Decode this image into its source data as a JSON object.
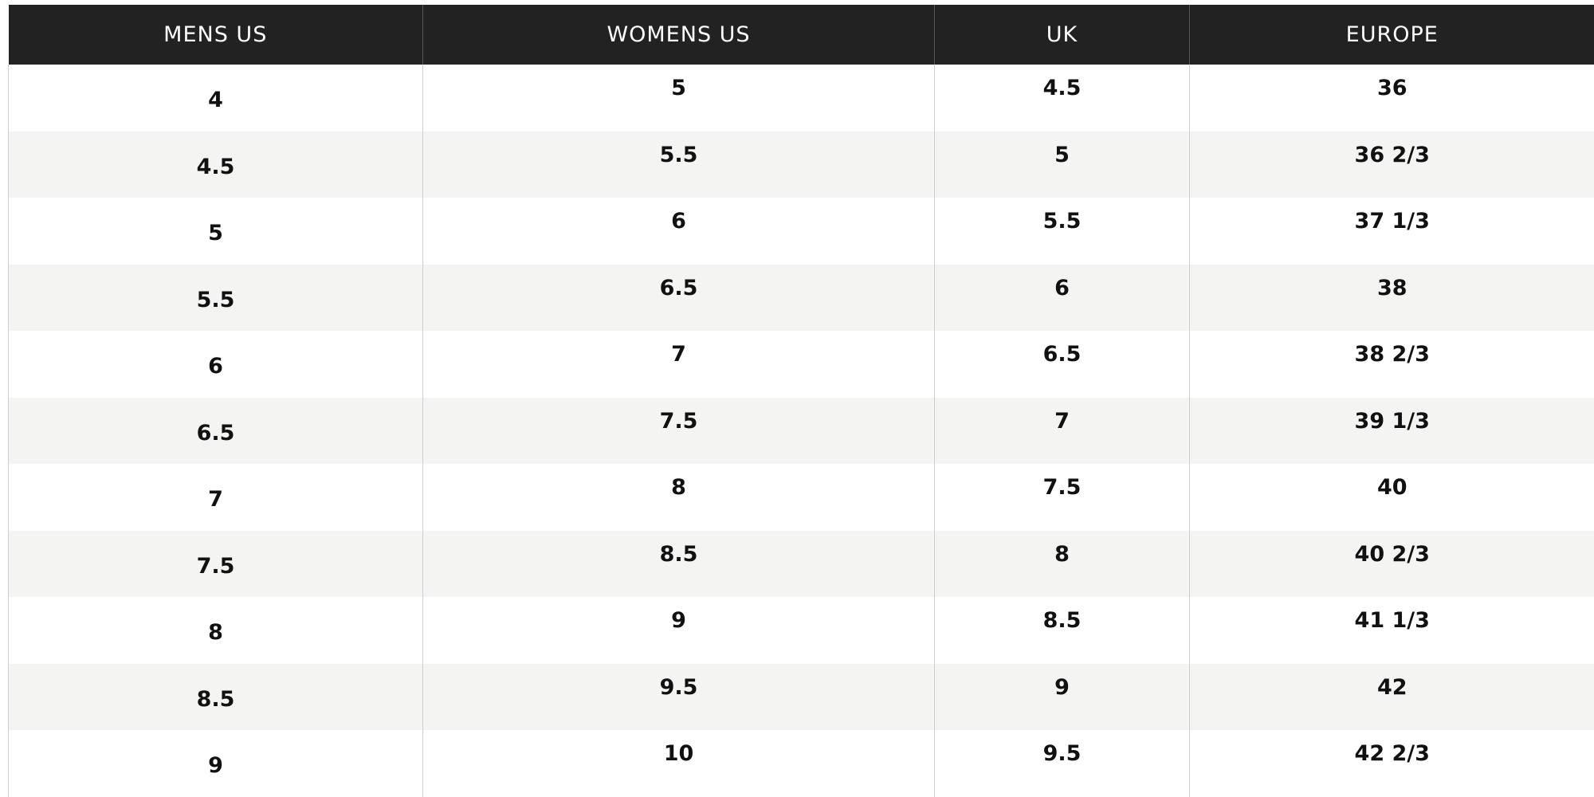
{
  "size_chart": {
    "headers": [
      "MENS US",
      "WOMENS US",
      "UK",
      "EUROPE"
    ],
    "rows": [
      [
        "4",
        "5",
        "4.5",
        "36"
      ],
      [
        "4.5",
        "5.5",
        "5",
        "36 2/3"
      ],
      [
        "5",
        "6",
        "5.5",
        "37 1/3"
      ],
      [
        "5.5",
        "6.5",
        "6",
        "38"
      ],
      [
        "6",
        "7",
        "6.5",
        "38 2/3"
      ],
      [
        "6.5",
        "7.5",
        "7",
        "39 1/3"
      ],
      [
        "7",
        "8",
        "7.5",
        "40"
      ],
      [
        "7.5",
        "8.5",
        "8",
        "40 2/3"
      ],
      [
        "8",
        "9",
        "8.5",
        "41 1/3"
      ],
      [
        "8.5",
        "9.5",
        "9",
        "42"
      ],
      [
        "9",
        "10",
        "9.5",
        "42 2/3"
      ]
    ]
  },
  "colors": {
    "header_background": "#222222",
    "header_text": "#ffffff",
    "striped_row": "#f4f4f2",
    "cell_text": "#111111"
  }
}
